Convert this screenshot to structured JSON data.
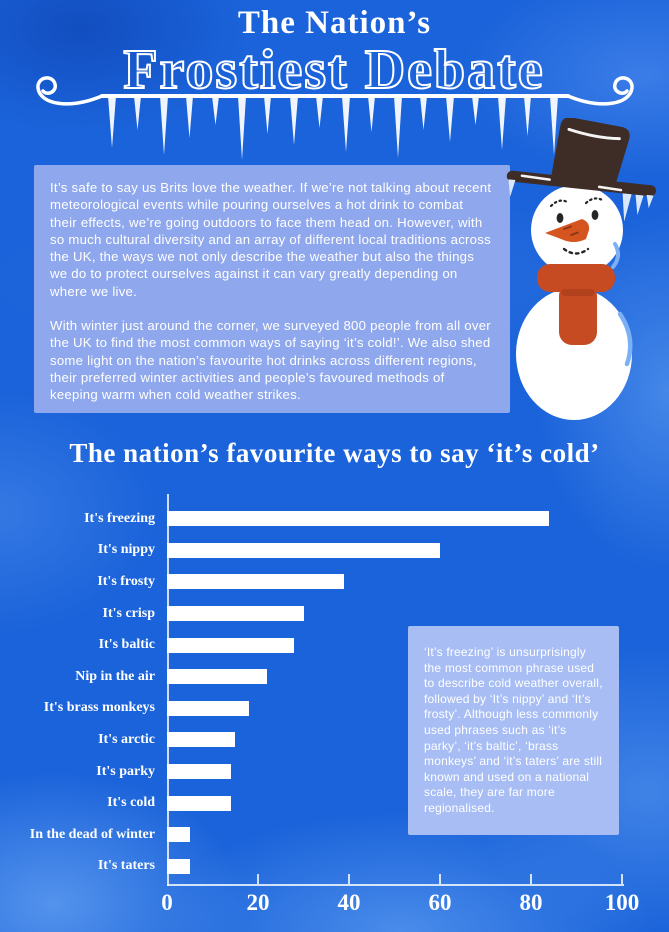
{
  "title": {
    "line1": "The Nation’s",
    "line2": "Frostiest Debate"
  },
  "intro": {
    "paragraph1": "It’s safe to say us Brits love the weather. If we’re not talking about recent meteorological events while pouring ourselves a hot drink to combat their effects, we’re going outdoors to face them head on. However, with so much cultural diversity and an array of different local traditions across the UK, the ways we not only describe the weather but also the things we do to protect ourselves against it can vary greatly depending on where we live.",
    "paragraph2": "With winter just around the corner, we surveyed 800 people from all over the UK to find the most common ways of saying ‘it’s cold!’. We also shed some light on the nation’s favourite hot drinks across different regions, their preferred winter activities and people’s favoured methods of keeping warm when cold weather strikes."
  },
  "section_heading": "The nation’s favourite ways to say ‘it’s cold’",
  "chart_data": {
    "type": "bar",
    "orientation": "horizontal",
    "title": "The nation’s favourite ways to say ‘it’s cold’",
    "categories": [
      "It's freezing",
      "It's nippy",
      "It's frosty",
      "It's crisp",
      "It's baltic",
      "Nip in the air",
      "It's brass monkeys",
      "It's arctic",
      "It's parky",
      "It's cold",
      "In the dead of winter",
      "It's taters"
    ],
    "values": [
      84,
      60,
      39,
      30,
      28,
      22,
      18,
      15,
      14,
      14,
      5,
      5
    ],
    "xlabel": "",
    "ylabel": "",
    "xlim": [
      0,
      100
    ],
    "xticks": [
      0,
      20,
      40,
      60,
      80,
      100
    ],
    "bar_color": "#ffffff",
    "grid": false,
    "legend": null
  },
  "annotation_box": {
    "text": "‘It’s freezing’ is unsurprisingly the most common phrase used to describe cold weather overall, followed by ‘It’s nippy’ and ‘It’s frosty’. Although less commonly used phrases such as ‘it’s parky’, ‘it’s baltic’, ‘brass monkeys’ and ‘it’s taters’ are still known and used on a national scale, they are far more regionalised."
  },
  "colors": {
    "background_blue": "#1b63da",
    "intro_box": "#8fa7ec",
    "annotation_box": "#a7bdf4",
    "bar": "#ffffff",
    "text": "#ffffff",
    "snowman_scarf": "#c64b23",
    "snowman_nose": "#d4551f",
    "snowman_hat": "#3e2c26",
    "icicle": "#d9e9fb"
  }
}
